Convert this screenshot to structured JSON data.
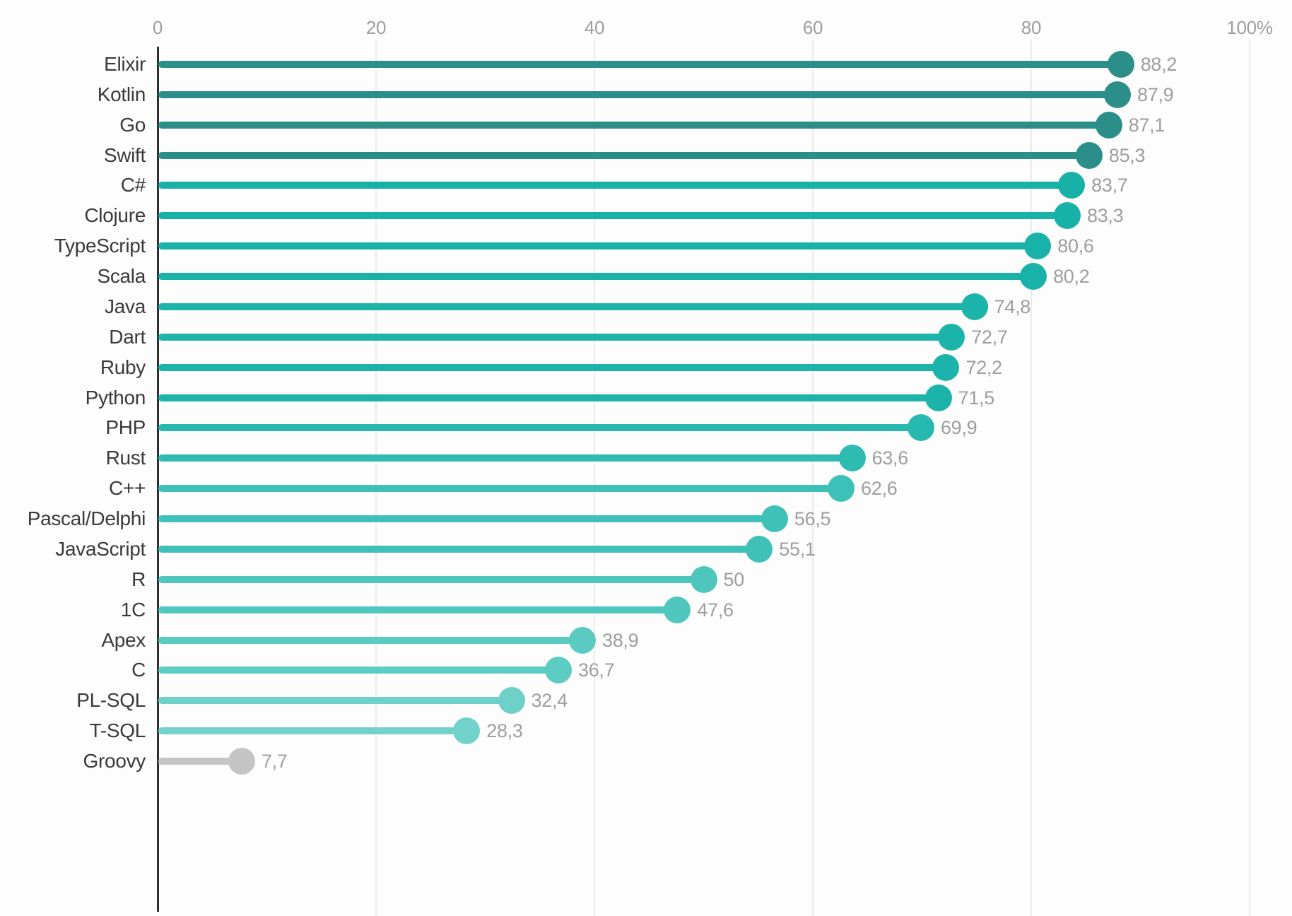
{
  "chart_data": {
    "type": "bar",
    "variant": "horizontal-lollipop",
    "title": "",
    "xlabel": "",
    "ylabel": "",
    "xlim": [
      0,
      100
    ],
    "grid": "vertical",
    "legend": "none",
    "value_format": "comma-decimal",
    "x_ticks": [
      {
        "value": 0,
        "label": "0"
      },
      {
        "value": 20,
        "label": "20"
      },
      {
        "value": 40,
        "label": "40"
      },
      {
        "value": 60,
        "label": "60"
      },
      {
        "value": 80,
        "label": "80"
      },
      {
        "value": 100,
        "label": "100%"
      }
    ],
    "rows": [
      {
        "label": "Elixir",
        "value": 88.2,
        "display": "88,2",
        "color": "#2B8E89"
      },
      {
        "label": "Kotlin",
        "value": 87.9,
        "display": "87,9",
        "color": "#2B8E89"
      },
      {
        "label": "Go",
        "value": 87.1,
        "display": "87,1",
        "color": "#2B8E89"
      },
      {
        "label": "Swift",
        "value": 85.3,
        "display": "85,3",
        "color": "#2B8E89"
      },
      {
        "label": "C#",
        "value": 83.7,
        "display": "83,7",
        "color": "#17B1A7"
      },
      {
        "label": "Clojure",
        "value": 83.3,
        "display": "83,3",
        "color": "#17B1A7"
      },
      {
        "label": "TypeScript",
        "value": 80.6,
        "display": "80,6",
        "color": "#18B2A8"
      },
      {
        "label": "Scala",
        "value": 80.2,
        "display": "80,2",
        "color": "#18B2A8"
      },
      {
        "label": "Java",
        "value": 74.8,
        "display": "74,8",
        "color": "#1CB4AA"
      },
      {
        "label": "Dart",
        "value": 72.7,
        "display": "72,7",
        "color": "#1CB4AA"
      },
      {
        "label": "Ruby",
        "value": 72.2,
        "display": "72,2",
        "color": "#1CB4AA"
      },
      {
        "label": "Python",
        "value": 71.5,
        "display": "71,5",
        "color": "#1CB4AA"
      },
      {
        "label": "PHP",
        "value": 69.9,
        "display": "69,9",
        "color": "#27B9AF"
      },
      {
        "label": "Rust",
        "value": 63.6,
        "display": "63,6",
        "color": "#2FBBB1"
      },
      {
        "label": "C++",
        "value": 62.6,
        "display": "62,6",
        "color": "#3DC0B7"
      },
      {
        "label": "Pascal/Delphi",
        "value": 56.5,
        "display": "56,5",
        "color": "#40C1B8"
      },
      {
        "label": "JavaScript",
        "value": 55.1,
        "display": "55,1",
        "color": "#40C1B8"
      },
      {
        "label": "R",
        "value": 50,
        "display": "50",
        "color": "#4EC6BD"
      },
      {
        "label": "1C",
        "value": 47.6,
        "display": "47,6",
        "color": "#50C7BE"
      },
      {
        "label": "Apex",
        "value": 38.9,
        "display": "38,9",
        "color": "#5BCBC2"
      },
      {
        "label": "C",
        "value": 36.7,
        "display": "36,7",
        "color": "#5DCCC3"
      },
      {
        "label": "PL-SQL",
        "value": 32.4,
        "display": "32,4",
        "color": "#6ED1C9"
      },
      {
        "label": "T-SQL",
        "value": 28.3,
        "display": "28,3",
        "color": "#70D2CA"
      },
      {
        "label": "Groovy",
        "value": 7.7,
        "display": "7,7",
        "color": "#C4C4C4"
      }
    ],
    "colors": {
      "axis": "#2F2F2F",
      "grid": "#ECECEC",
      "category_label": "#3A3A3A",
      "value_label": "#9E9E9E",
      "tick_label": "#9E9E9E",
      "series_high": "#2B8E89",
      "series_low": "#70D2CA",
      "neutral_gray": "#C4C4C4"
    }
  }
}
